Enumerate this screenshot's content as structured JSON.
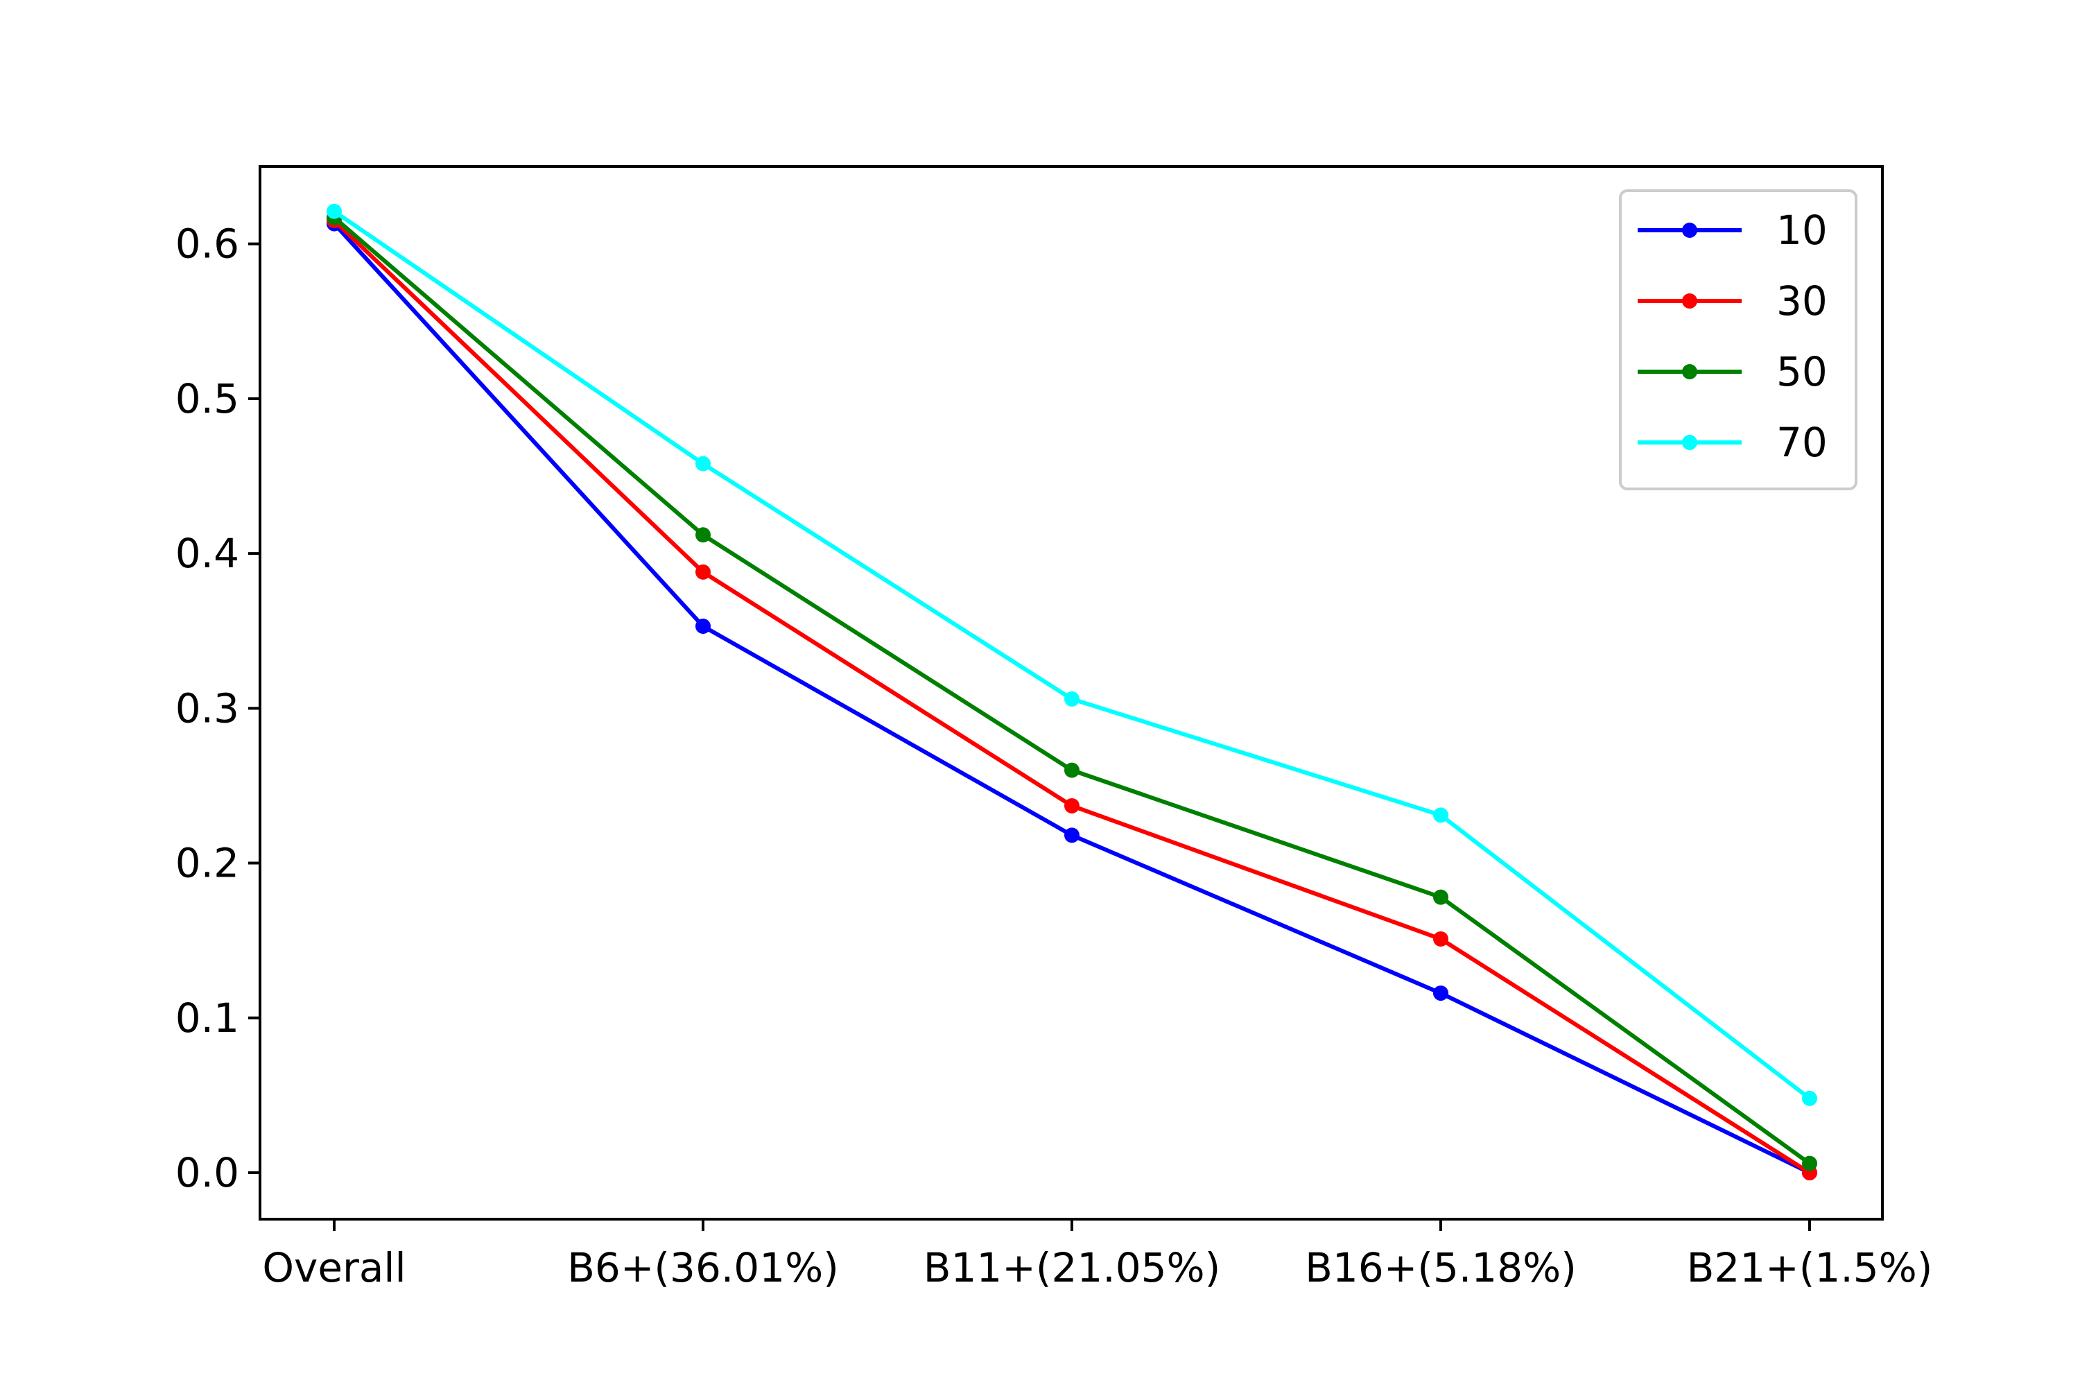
{
  "chart_data": {
    "type": "line",
    "title": "",
    "xlabel": "",
    "ylabel": "",
    "categories": [
      "Overall",
      "B6+(36.01%)",
      "B11+(21.05%)",
      "B16+(5.18%)",
      "B21+(1.5%)"
    ],
    "ylim": [
      -0.03,
      0.65
    ],
    "yticks": [
      0.0,
      0.1,
      0.2,
      0.3,
      0.4,
      0.5,
      0.6
    ],
    "ytick_labels": [
      "0.0",
      "0.1",
      "0.2",
      "0.3",
      "0.4",
      "0.5",
      "0.6"
    ],
    "grid": false,
    "legend_position": "top-right",
    "series": [
      {
        "name": "10",
        "color": "#0000ff",
        "values": [
          0.613,
          0.353,
          0.218,
          0.116,
          0.0
        ]
      },
      {
        "name": "30",
        "color": "#ff0000",
        "values": [
          0.615,
          0.388,
          0.237,
          0.151,
          0.0
        ]
      },
      {
        "name": "50",
        "color": "#008000",
        "values": [
          0.617,
          0.412,
          0.26,
          0.178,
          0.006
        ]
      },
      {
        "name": "70",
        "color": "#00ffff",
        "values": [
          0.621,
          0.458,
          0.306,
          0.231,
          0.048
        ]
      }
    ]
  }
}
